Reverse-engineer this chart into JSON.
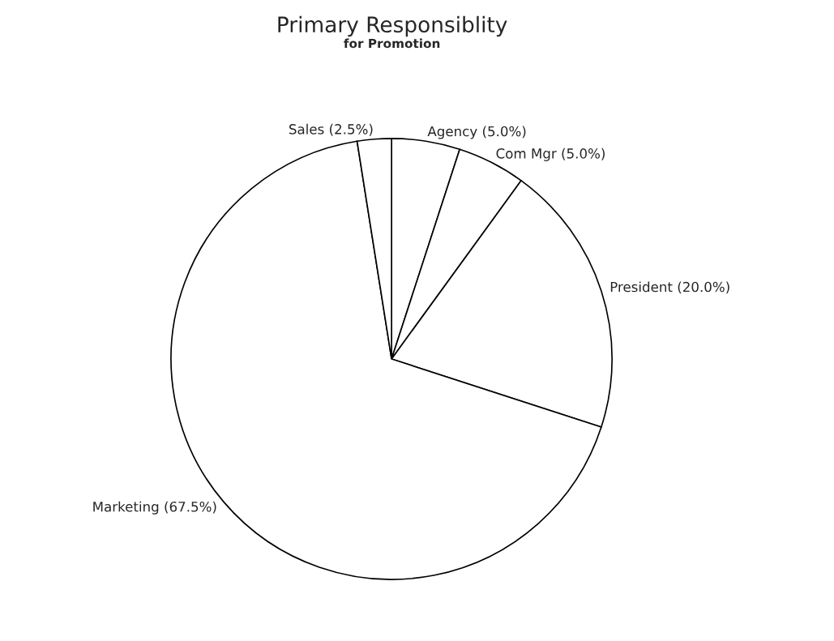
{
  "chart_data": {
    "type": "pie",
    "title": "Primary Responsiblity",
    "subtitle": "for Promotion",
    "categories": [
      "Agency",
      "Com Mgr",
      "President",
      "Marketing",
      "Sales"
    ],
    "values": [
      5.0,
      5.0,
      20.0,
      67.5,
      2.5
    ],
    "value_labels": [
      "(5.0%)",
      "(5.0%)",
      "(20.0%)",
      "(67.5%)",
      "(2.5%)"
    ],
    "colors": [
      "#ffffff",
      "#ffffff",
      "#ffffff",
      "#ffffff",
      "#ffffff"
    ],
    "legend": false
  }
}
